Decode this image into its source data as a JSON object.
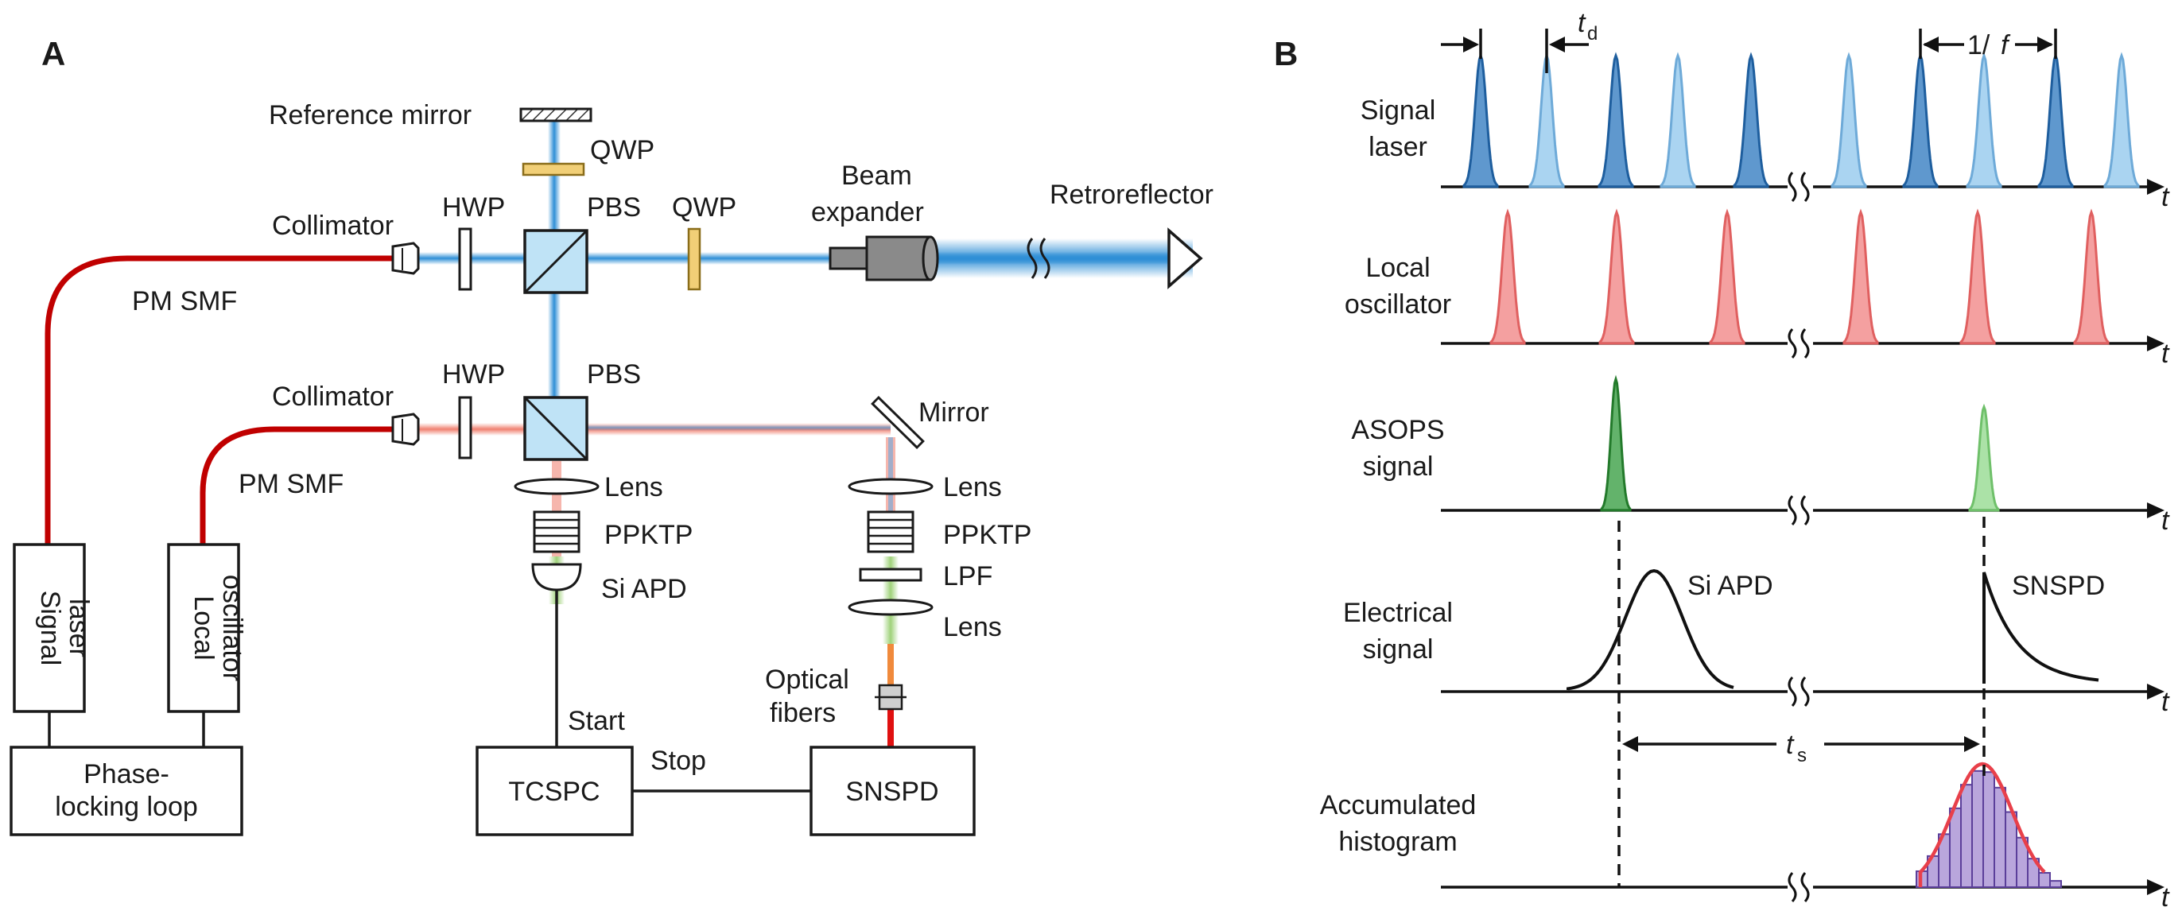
{
  "panels": {
    "a": "A",
    "b": "B"
  },
  "setup": {
    "reference_mirror": "Reference mirror",
    "qwp_top": "QWP",
    "qwp_right": "QWP",
    "hwp_top": "HWP",
    "hwp_bottom": "HWP",
    "pbs_top": "PBS",
    "pbs_bottom": "PBS",
    "collimator_top": "Collimator",
    "collimator_bottom": "Collimator",
    "beam_expander_1": "Beam",
    "beam_expander_2": "expander",
    "retroreflector": "Retroreflector",
    "pm_smf_top": "PM SMF",
    "pm_smf_bottom": "PM SMF",
    "mirror": "Mirror",
    "lens_left": "Lens",
    "lens_right_1": "Lens",
    "lens_right_2": "Lens",
    "ppktp_left": "PPKTP",
    "ppktp_right": "PPKTP",
    "si_apd": "Si APD",
    "lpf": "LPF",
    "optical_fibers_1": "Optical",
    "optical_fibers_2": "fibers",
    "signal_laser_1": "Signal",
    "signal_laser_2": "laser",
    "local_osc_1": "Local",
    "local_osc_2": "oscillator",
    "plloop_1": "Phase-",
    "plloop_2": "locking loop",
    "tcspc": "TCSPC",
    "snspd": "SNSPD",
    "start": "Start",
    "stop": "Stop"
  },
  "timing": {
    "rows": [
      {
        "line1": "Signal",
        "line2": "laser"
      },
      {
        "line1": "Local",
        "line2": "oscillator"
      },
      {
        "line1": "ASOPS",
        "line2": "signal"
      },
      {
        "line1": "Electrical",
        "line2": "signal"
      },
      {
        "line1": "Accumulated",
        "line2": "histogram"
      }
    ],
    "t_axis": "t",
    "td_main": "t",
    "td_sub": "d",
    "ts_main": "t",
    "ts_sub": "s",
    "period_main": "1/",
    "period_italic": "f",
    "si_apd": "Si APD",
    "snspd": "SNSPD"
  },
  "colors": {
    "signal_dark": "#2a76bd",
    "signal_light": "#8ec6ec",
    "local_osc": "#f08080",
    "asops_dark": "#2f9a3a",
    "asops_light": "#8fd88a",
    "histogram_fill": "#b9a6dc",
    "histogram_curve": "#e8404a",
    "fiber": "#c00000"
  }
}
